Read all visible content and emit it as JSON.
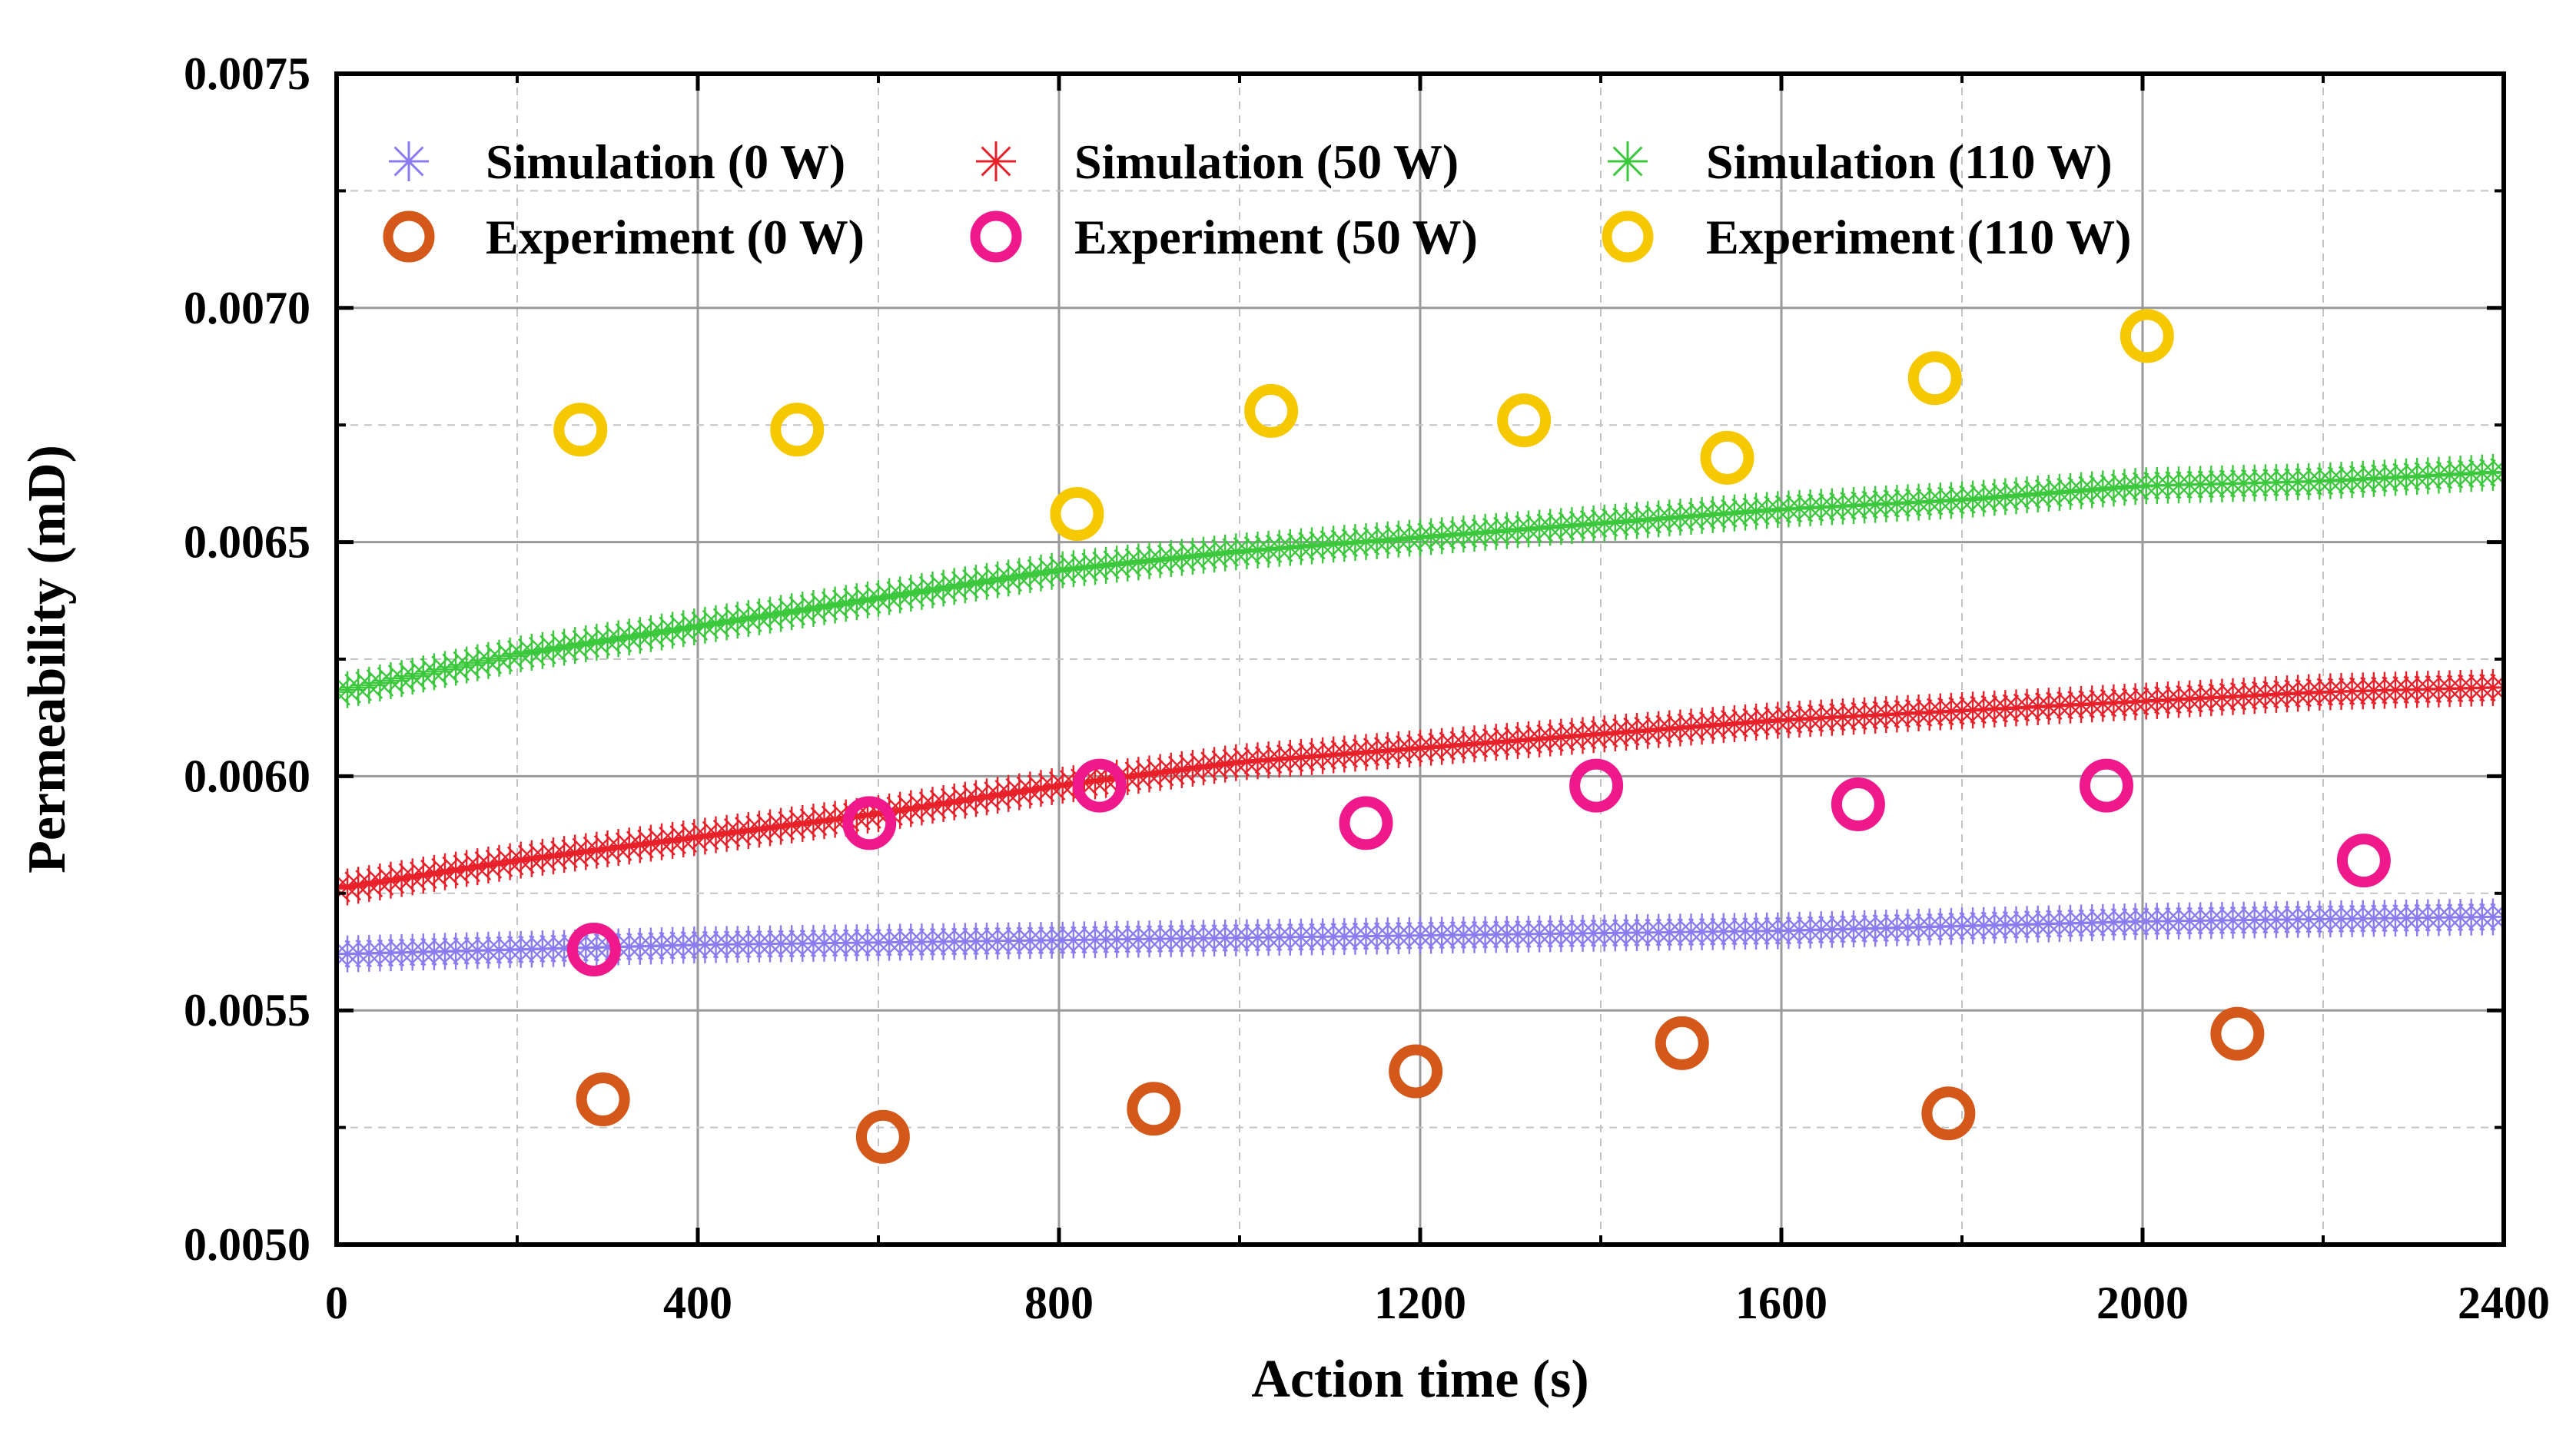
{
  "chart_data": {
    "type": "scatter",
    "title": "",
    "xlabel": "Action time (s)",
    "ylabel": "Permeability (mD)",
    "xlim": [
      0,
      2400
    ],
    "ylim": [
      0.005,
      0.0075
    ],
    "xticks": [
      0,
      400,
      800,
      1200,
      1600,
      2000,
      2400
    ],
    "yticks": [
      0.005,
      0.0055,
      0.006,
      0.0065,
      0.007,
      0.0075
    ],
    "xtick_labels": [
      "0",
      "400",
      "800",
      "1200",
      "1600",
      "2000",
      "2400"
    ],
    "ytick_labels": [
      "0.0050",
      "0.0055",
      "0.0060",
      "0.0065",
      "0.0070",
      "0.0075"
    ],
    "grid": true,
    "legend_position": "top",
    "series": [
      {
        "name": "Simulation (0 W)",
        "kind": "simulation",
        "color": "#8a7cf0",
        "x": [
          0,
          400,
          800,
          1200,
          1600,
          2000,
          2400
        ],
        "values": [
          0.00562,
          0.00564,
          0.00565,
          0.00566,
          0.00567,
          0.00569,
          0.0057
        ]
      },
      {
        "name": "Simulation (50 W)",
        "kind": "simulation",
        "color": "#e8202a",
        "x": [
          0,
          200,
          400,
          600,
          800,
          1000,
          1200,
          1400,
          1600,
          1800,
          2000,
          2200,
          2400
        ],
        "values": [
          0.00576,
          0.00582,
          0.00587,
          0.00592,
          0.00598,
          0.00603,
          0.00606,
          0.00609,
          0.00612,
          0.00614,
          0.00616,
          0.00618,
          0.00619
        ]
      },
      {
        "name": "Simulation (110 W)",
        "kind": "simulation",
        "color": "#3cc83c",
        "x": [
          0,
          200,
          400,
          600,
          800,
          1000,
          1200,
          1400,
          1600,
          1800,
          2000,
          2200,
          2400
        ],
        "values": [
          0.00618,
          0.00626,
          0.00632,
          0.00638,
          0.00644,
          0.00648,
          0.00651,
          0.00654,
          0.00657,
          0.00659,
          0.00662,
          0.00663,
          0.00665
        ]
      },
      {
        "name": "Experiment (0 W)",
        "kind": "experiment",
        "color": "#d4581a",
        "x": [
          295,
          605,
          905,
          1195,
          1490,
          1785,
          2105
        ],
        "values": [
          0.00531,
          0.00523,
          0.00529,
          0.00537,
          0.00543,
          0.00528,
          0.00545
        ]
      },
      {
        "name": "Experiment (50 W)",
        "kind": "experiment",
        "color": "#f0198c",
        "x": [
          285,
          590,
          845,
          1140,
          1395,
          1685,
          1960,
          2245
        ],
        "values": [
          0.00563,
          0.0059,
          0.00598,
          0.0059,
          0.00598,
          0.00594,
          0.00598,
          0.00582
        ]
      },
      {
        "name": "Experiment (110 W)",
        "kind": "experiment",
        "color": "#f5c800",
        "x": [
          270,
          510,
          820,
          1035,
          1315,
          1540,
          1770,
          2005
        ],
        "values": [
          0.00674,
          0.00674,
          0.00656,
          0.00678,
          0.00676,
          0.00668,
          0.00685,
          0.00694
        ]
      }
    ]
  }
}
